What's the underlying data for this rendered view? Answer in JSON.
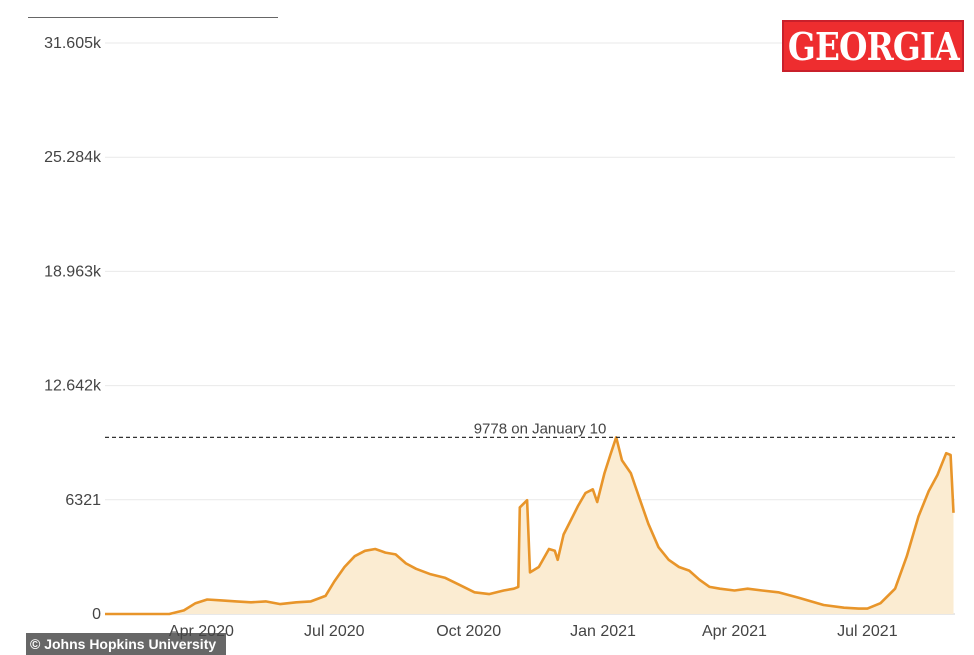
{
  "badge": {
    "text": "GEORGIA",
    "color": "#ee2d2f"
  },
  "credit": {
    "text": "© Johns Hopkins University"
  },
  "colors": {
    "line": "#e8952a",
    "fill": "#fbecd2",
    "grid": "#e9e9e9"
  },
  "chart_data": {
    "type": "line",
    "title": "",
    "xlabel": "",
    "ylabel": "",
    "ylim": [
      0,
      31605
    ],
    "y_ticks": [
      {
        "value": 0,
        "label": "0"
      },
      {
        "value": 6321,
        "label": "6321"
      },
      {
        "value": 12642,
        "label": "12.642k"
      },
      {
        "value": 18963,
        "label": "18.963k"
      },
      {
        "value": 25284,
        "label": "25.284k"
      },
      {
        "value": 31605,
        "label": "31.605k"
      }
    ],
    "xlim": [
      "2020-01-26",
      "2021-08-30"
    ],
    "x_ticks": [
      {
        "date": "2020-04-01",
        "label": "Apr 2020"
      },
      {
        "date": "2020-07-01",
        "label": "Jul 2020"
      },
      {
        "date": "2020-10-01",
        "label": "Oct 2020"
      },
      {
        "date": "2021-01-01",
        "label": "Jan 2021"
      },
      {
        "date": "2021-04-01",
        "label": "Apr 2021"
      },
      {
        "date": "2021-07-01",
        "label": "Jul 2021"
      }
    ],
    "annotation": {
      "value": 9778,
      "text": "9778 on January 10"
    },
    "series": [
      {
        "name": "",
        "points": [
          [
            "2020-01-26",
            0
          ],
          [
            "2020-03-10",
            0
          ],
          [
            "2020-03-20",
            200
          ],
          [
            "2020-03-28",
            600
          ],
          [
            "2020-04-05",
            800
          ],
          [
            "2020-04-15",
            750
          ],
          [
            "2020-04-25",
            700
          ],
          [
            "2020-05-05",
            650
          ],
          [
            "2020-05-15",
            700
          ],
          [
            "2020-05-25",
            550
          ],
          [
            "2020-06-05",
            650
          ],
          [
            "2020-06-15",
            700
          ],
          [
            "2020-06-25",
            1000
          ],
          [
            "2020-07-01",
            1800
          ],
          [
            "2020-07-08",
            2600
          ],
          [
            "2020-07-15",
            3200
          ],
          [
            "2020-07-22",
            3500
          ],
          [
            "2020-07-29",
            3600
          ],
          [
            "2020-08-05",
            3400
          ],
          [
            "2020-08-12",
            3300
          ],
          [
            "2020-08-19",
            2800
          ],
          [
            "2020-08-26",
            2500
          ],
          [
            "2020-09-05",
            2200
          ],
          [
            "2020-09-15",
            2000
          ],
          [
            "2020-09-25",
            1600
          ],
          [
            "2020-10-05",
            1200
          ],
          [
            "2020-10-15",
            1100
          ],
          [
            "2020-10-25",
            1300
          ],
          [
            "2020-11-01",
            1400
          ],
          [
            "2020-11-04",
            1500
          ],
          [
            "2020-11-05",
            5900
          ],
          [
            "2020-11-10",
            6300
          ],
          [
            "2020-11-12",
            2300
          ],
          [
            "2020-11-18",
            2600
          ],
          [
            "2020-11-25",
            3600
          ],
          [
            "2020-11-29",
            3500
          ],
          [
            "2020-12-01",
            3000
          ],
          [
            "2020-12-05",
            4400
          ],
          [
            "2020-12-10",
            5200
          ],
          [
            "2020-12-15",
            6000
          ],
          [
            "2020-12-20",
            6700
          ],
          [
            "2020-12-25",
            6900
          ],
          [
            "2020-12-28",
            6200
          ],
          [
            "2021-01-02",
            7800
          ],
          [
            "2021-01-06",
            8800
          ],
          [
            "2021-01-10",
            9778
          ],
          [
            "2021-01-14",
            8500
          ],
          [
            "2021-01-20",
            7800
          ],
          [
            "2021-01-26",
            6400
          ],
          [
            "2021-02-01",
            5000
          ],
          [
            "2021-02-08",
            3700
          ],
          [
            "2021-02-15",
            3000
          ],
          [
            "2021-02-22",
            2600
          ],
          [
            "2021-03-01",
            2400
          ],
          [
            "2021-03-08",
            1900
          ],
          [
            "2021-03-15",
            1500
          ],
          [
            "2021-03-22",
            1400
          ],
          [
            "2021-04-01",
            1300
          ],
          [
            "2021-04-10",
            1400
          ],
          [
            "2021-04-20",
            1300
          ],
          [
            "2021-05-01",
            1200
          ],
          [
            "2021-05-15",
            900
          ],
          [
            "2021-06-01",
            500
          ],
          [
            "2021-06-15",
            350
          ],
          [
            "2021-06-25",
            300
          ],
          [
            "2021-07-01",
            300
          ],
          [
            "2021-07-10",
            600
          ],
          [
            "2021-07-20",
            1400
          ],
          [
            "2021-07-28",
            3200
          ],
          [
            "2021-08-05",
            5400
          ],
          [
            "2021-08-12",
            6800
          ],
          [
            "2021-08-18",
            7700
          ],
          [
            "2021-08-24",
            8900
          ],
          [
            "2021-08-27",
            8800
          ],
          [
            "2021-08-29",
            5600
          ]
        ]
      }
    ]
  }
}
